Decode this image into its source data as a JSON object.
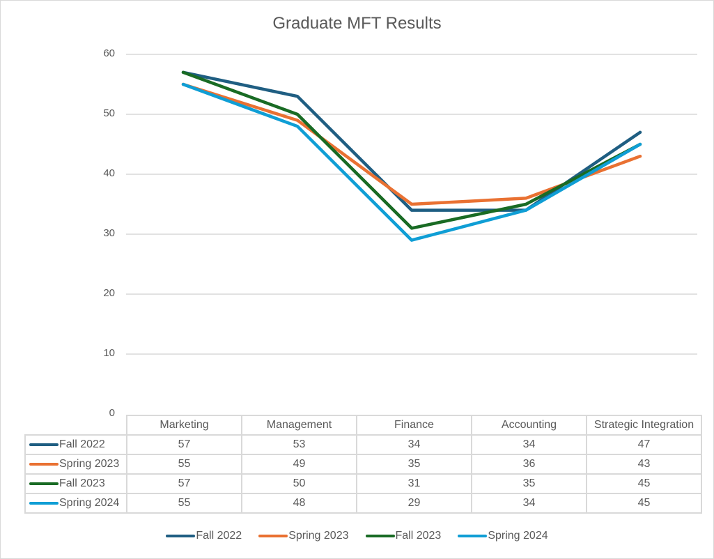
{
  "chart_data": {
    "type": "line",
    "title": "Graduate MFT Results",
    "xlabel": "",
    "ylabel": "",
    "ylim": [
      0,
      60
    ],
    "yticks": [
      0,
      10,
      20,
      30,
      40,
      50,
      60
    ],
    "grid": true,
    "legend_position": "bottom",
    "data_table": true,
    "categories": [
      "Marketing",
      "Management",
      "Finance",
      "Accounting",
      "Strategic Integration"
    ],
    "series": [
      {
        "name": "Fall 2022",
        "color": "#1f5e82",
        "values": [
          57,
          53,
          34,
          34,
          47
        ]
      },
      {
        "name": "Spring 2023",
        "color": "#e97132",
        "values": [
          55,
          49,
          35,
          36,
          43
        ]
      },
      {
        "name": "Fall 2023",
        "color": "#196b24",
        "values": [
          57,
          50,
          31,
          35,
          45
        ]
      },
      {
        "name": "Spring 2024",
        "color": "#0f9ed5",
        "values": [
          55,
          48,
          29,
          34,
          45
        ]
      }
    ]
  }
}
